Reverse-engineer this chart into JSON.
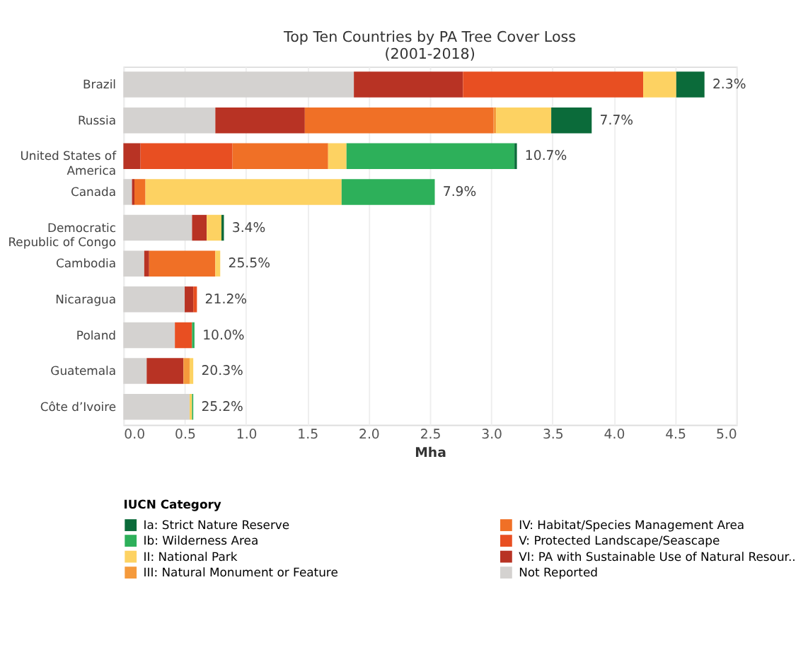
{
  "chart_data": {
    "type": "bar",
    "orientation": "horizontal",
    "stacked": true,
    "title": "Top Ten Countries by PA Tree Cover Loss",
    "subtitle": "(2001-2018)",
    "xlabel": "Mha",
    "legend_title": "IUCN Category",
    "legend": "bottom left",
    "grid": "x",
    "categories": [
      "Brazil",
      "Russia",
      "United States of America",
      "Canada",
      "Democratic Republic of Congo",
      "Cambodia",
      "Nicaragua",
      "Poland",
      "Guatemala",
      "Côte d’Ivoire"
    ],
    "xlim": [
      0,
      5
    ],
    "xticks": [
      {
        "value": 0,
        "label": "0.0"
      },
      {
        "value": 0.5,
        "label": "0.5"
      },
      {
        "value": 1,
        "label": "1.0"
      },
      {
        "value": 1.5,
        "label": "1.5"
      },
      {
        "value": 2,
        "label": "2.0"
      },
      {
        "value": 2.5,
        "label": "2.5"
      },
      {
        "value": 3,
        "label": "3.0"
      },
      {
        "value": 3.5,
        "label": "3.5"
      },
      {
        "value": 4,
        "label": "4.0"
      },
      {
        "value": 4.5,
        "label": "4.5"
      },
      {
        "value": 5,
        "label": "5.0"
      }
    ],
    "series": [
      {
        "name": "Not Reported",
        "color": "#d4d2d0",
        "values": [
          1.88,
          0.75,
          null,
          0.07,
          0.56,
          0.17,
          0.5,
          0.42,
          0.19,
          0.54
        ]
      },
      {
        "name": "VI: PA with Sustainable Use of Natural Resour..",
        "color": "#b83324",
        "values": [
          0.89,
          0.73,
          0.14,
          0.02,
          0.12,
          0.04,
          0.07,
          null,
          0.3,
          null
        ]
      },
      {
        "name": "V: Protected Landscape/Seascape",
        "color": "#e84f22",
        "values": [
          1.47,
          null,
          0.75,
          null,
          null,
          null,
          0.03,
          0.14,
          null,
          null
        ]
      },
      {
        "name": "IV: Habitat/Species Management Area",
        "color": "#f07026",
        "values": [
          null,
          1.54,
          0.78,
          0.09,
          null,
          0.54,
          null,
          null,
          null,
          null
        ]
      },
      {
        "name": "III: Natural Monument or Feature",
        "color": "#f59a3c",
        "values": [
          null,
          0.02,
          null,
          null,
          null,
          null,
          null,
          null,
          0.05,
          null
        ]
      },
      {
        "name": "II: National Park",
        "color": "#fdd262",
        "values": [
          0.27,
          0.45,
          0.15,
          1.6,
          0.12,
          0.04,
          null,
          null,
          0.03,
          0.02
        ]
      },
      {
        "name": "Ib: Wilderness Area",
        "color": "#2db05a",
        "values": [
          null,
          null,
          1.37,
          0.76,
          null,
          null,
          null,
          0.02,
          null,
          0.01
        ]
      },
      {
        "name": "Ia: Strict Nature Reserve",
        "color": "#0b6b3a",
        "values": [
          0.23,
          0.33,
          0.02,
          null,
          0.02,
          null,
          null,
          null,
          null,
          null
        ]
      }
    ],
    "annotations": [
      {
        "text": "2.3%",
        "x": 4.74,
        "y": "Brazil"
      },
      {
        "text": "7.7%",
        "x": 3.82,
        "y": "Russia"
      },
      {
        "text": "10.7%",
        "x": 3.21,
        "y": "United States of America"
      },
      {
        "text": "7.9%",
        "x": 2.54,
        "y": "Canada"
      },
      {
        "text": "3.4%",
        "x": 0.82,
        "y": "Democratic Republic of Congo"
      },
      {
        "text": "25.5%",
        "x": 0.79,
        "y": "Cambodia"
      },
      {
        "text": "21.2%",
        "x": 0.6,
        "y": "Nicaragua"
      },
      {
        "text": "10.0%",
        "x": 0.58,
        "y": "Poland"
      },
      {
        "text": "20.3%",
        "x": 0.57,
        "y": "Guatemala"
      },
      {
        "text": "25.2%",
        "x": 0.57,
        "y": "Côte d’Ivoire"
      }
    ]
  }
}
